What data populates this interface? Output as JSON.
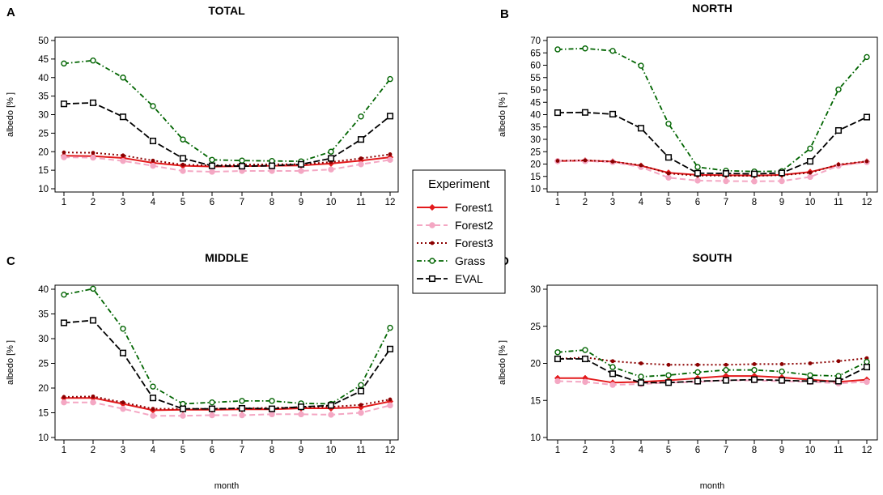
{
  "figure": {
    "xlabel": "month",
    "ylabel": "albedo [% ]"
  },
  "legend": {
    "title": "Experiment",
    "items": [
      {
        "name": "Forest1",
        "color": "#e31a1c"
      },
      {
        "name": "Forest2",
        "color": "#f4a7c3"
      },
      {
        "name": "Forest3",
        "color": "#8b0000"
      },
      {
        "name": "Grass",
        "color": "#006400"
      },
      {
        "name": "EVAL",
        "color": "#000000"
      }
    ]
  },
  "chart_data": [
    {
      "type": "line",
      "letter": "A",
      "title": "TOTAL",
      "xlabel": "",
      "ylabel": "albedo [% ]",
      "categories": [
        "1",
        "2",
        "3",
        "4",
        "5",
        "6",
        "7",
        "8",
        "9",
        "10",
        "11",
        "12"
      ],
      "ylim": [
        10,
        50
      ],
      "yticks": [
        10,
        15,
        20,
        25,
        30,
        35,
        40,
        45,
        50
      ],
      "series": [
        {
          "name": "Forest1",
          "values": [
            18.9,
            18.8,
            18.3,
            17.0,
            16.2,
            16.0,
            16.1,
            16.2,
            16.3,
            16.8,
            17.6,
            18.5
          ]
        },
        {
          "name": "Forest2",
          "values": [
            18.5,
            18.4,
            17.5,
            16.2,
            14.8,
            14.6,
            14.8,
            14.8,
            14.8,
            15.2,
            16.6,
            17.8
          ]
        },
        {
          "name": "Forest3",
          "values": [
            19.8,
            19.7,
            19.0,
            17.6,
            16.5,
            16.3,
            16.5,
            16.6,
            16.6,
            17.2,
            18.2,
            19.3
          ]
        },
        {
          "name": "Grass",
          "values": [
            43.8,
            44.6,
            40.0,
            32.3,
            23.3,
            17.8,
            17.6,
            17.5,
            17.4,
            20.0,
            29.5,
            39.6
          ]
        },
        {
          "name": "EVAL",
          "values": [
            32.9,
            33.2,
            29.4,
            22.9,
            18.2,
            16.2,
            16.1,
            16.2,
            16.6,
            18.2,
            23.3,
            29.6
          ]
        }
      ]
    },
    {
      "type": "line",
      "letter": "B",
      "title": "NORTH",
      "xlabel": "",
      "ylabel": "albedo [% ]",
      "categories": [
        "1",
        "2",
        "3",
        "4",
        "5",
        "6",
        "7",
        "8",
        "9",
        "10",
        "11",
        "12"
      ],
      "ylim": [
        10,
        70
      ],
      "yticks": [
        10,
        15,
        20,
        25,
        30,
        35,
        40,
        45,
        50,
        55,
        60,
        65,
        70
      ],
      "series": [
        {
          "name": "Forest1",
          "values": [
            21.2,
            21.4,
            21.0,
            19.3,
            16.5,
            15.6,
            15.5,
            15.3,
            15.6,
            16.8,
            19.6,
            21.0
          ]
        },
        {
          "name": "Forest2",
          "values": [
            21.2,
            21.2,
            20.8,
            18.8,
            14.5,
            13.3,
            13.1,
            13.0,
            13.1,
            14.8,
            19.3,
            20.8
          ]
        },
        {
          "name": "Forest3",
          "values": [
            21.3,
            21.5,
            21.0,
            19.5,
            16.2,
            15.3,
            15.3,
            15.2,
            15.5,
            16.5,
            19.8,
            21.1
          ]
        },
        {
          "name": "Grass",
          "values": [
            66.4,
            66.8,
            65.8,
            59.8,
            36.3,
            18.8,
            17.3,
            17.0,
            17.1,
            26.3,
            50.2,
            63.3
          ]
        },
        {
          "name": "EVAL",
          "values": [
            40.8,
            40.9,
            40.2,
            34.5,
            22.7,
            16.3,
            16.2,
            16.0,
            16.4,
            21.1,
            33.6,
            39.0
          ]
        }
      ]
    },
    {
      "type": "line",
      "letter": "C",
      "title": "MIDDLE",
      "xlabel": "month",
      "ylabel": "albedo [% ]",
      "categories": [
        "1",
        "2",
        "3",
        "4",
        "5",
        "6",
        "7",
        "8",
        "9",
        "10",
        "11",
        "12"
      ],
      "ylim": [
        10,
        40
      ],
      "yticks": [
        10,
        15,
        20,
        25,
        30,
        35,
        40
      ],
      "series": [
        {
          "name": "Forest1",
          "values": [
            18.0,
            18.0,
            16.8,
            15.5,
            15.6,
            15.6,
            15.7,
            15.7,
            15.9,
            15.9,
            16.1,
            17.3
          ]
        },
        {
          "name": "Forest2",
          "values": [
            17.1,
            17.1,
            15.8,
            14.4,
            14.4,
            14.5,
            14.5,
            14.7,
            14.7,
            14.6,
            15.0,
            16.5
          ]
        },
        {
          "name": "Forest3",
          "values": [
            18.2,
            18.3,
            17.1,
            15.8,
            15.8,
            15.8,
            15.9,
            16.0,
            16.1,
            16.2,
            16.6,
            17.7
          ]
        },
        {
          "name": "Grass",
          "values": [
            38.9,
            40.1,
            32.0,
            20.3,
            16.8,
            17.1,
            17.4,
            17.4,
            16.9,
            16.8,
            20.6,
            32.2
          ]
        },
        {
          "name": "EVAL",
          "values": [
            33.2,
            33.7,
            27.1,
            18.0,
            15.8,
            15.8,
            15.9,
            15.8,
            16.2,
            16.5,
            19.4,
            27.9
          ]
        }
      ]
    },
    {
      "type": "line",
      "letter": "D",
      "title": "SOUTH",
      "xlabel": "month",
      "ylabel": "albedo [% ]",
      "categories": [
        "1",
        "2",
        "3",
        "4",
        "5",
        "6",
        "7",
        "8",
        "9",
        "10",
        "11",
        "12"
      ],
      "ylim": [
        10,
        30
      ],
      "yticks": [
        10,
        15,
        20,
        25,
        30
      ],
      "series": [
        {
          "name": "Forest1",
          "values": [
            18.0,
            18.0,
            17.4,
            17.5,
            17.7,
            18.0,
            18.3,
            18.3,
            18.1,
            17.8,
            17.5,
            17.8
          ]
        },
        {
          "name": "Forest2",
          "values": [
            17.6,
            17.5,
            17.1,
            17.2,
            17.4,
            17.5,
            17.7,
            17.7,
            17.6,
            17.5,
            17.3,
            17.5
          ]
        },
        {
          "name": "Forest3",
          "values": [
            20.6,
            20.8,
            20.3,
            20.0,
            19.8,
            19.8,
            19.8,
            19.9,
            19.9,
            20.0,
            20.3,
            20.7
          ]
        },
        {
          "name": "Grass",
          "values": [
            21.5,
            21.8,
            19.5,
            18.2,
            18.4,
            18.8,
            19.1,
            19.1,
            18.9,
            18.4,
            18.3,
            20.2
          ]
        },
        {
          "name": "EVAL",
          "values": [
            20.6,
            20.6,
            18.6,
            17.4,
            17.4,
            17.6,
            17.7,
            17.8,
            17.7,
            17.6,
            17.6,
            19.5
          ]
        }
      ]
    }
  ]
}
